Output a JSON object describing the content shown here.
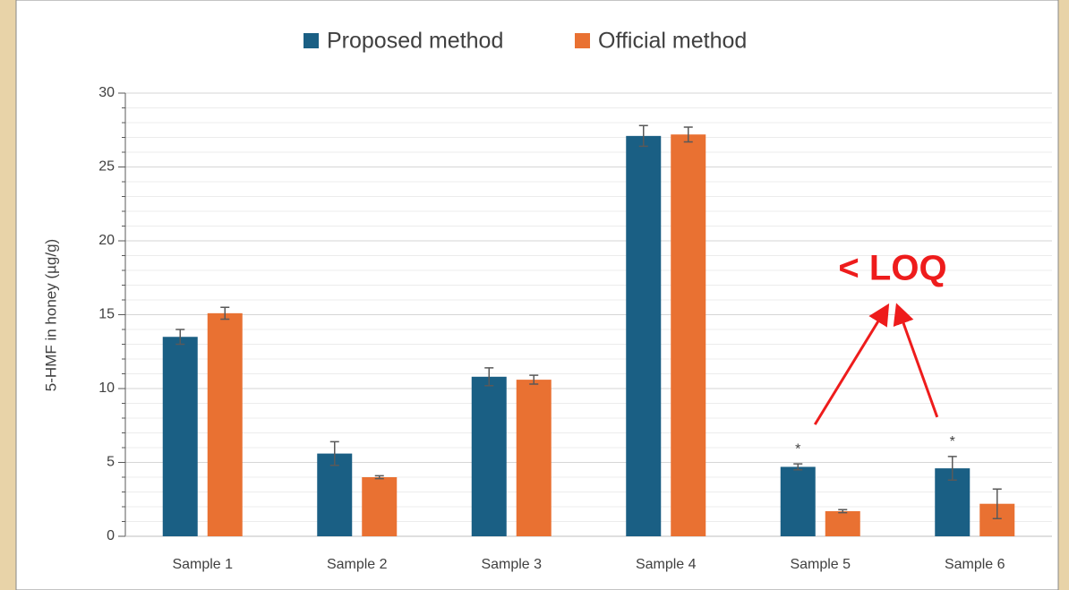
{
  "chart_data": {
    "type": "bar",
    "y_label": "5-HMF in honey (µg/g)",
    "categories": [
      "Sample 1",
      "Sample 2",
      "Sample 3",
      "Sample 4",
      "Sample 5",
      "Sample 6"
    ],
    "series": [
      {
        "name": "Proposed method",
        "color": "#1a5f84",
        "values": [
          13.5,
          5.6,
          10.8,
          27.1,
          4.7,
          4.6
        ],
        "errors": [
          0.5,
          0.8,
          0.6,
          0.7,
          0.2,
          0.8
        ]
      },
      {
        "name": "Official method",
        "color": "#e97132",
        "values": [
          15.1,
          4.0,
          10.6,
          27.2,
          1.7,
          2.2
        ],
        "errors": [
          0.4,
          0.1,
          0.3,
          0.5,
          0.1,
          1.0
        ]
      }
    ],
    "ylim": [
      0,
      30
    ],
    "yticks": [
      0,
      5,
      10,
      15,
      20,
      25,
      30
    ],
    "grid": true,
    "minor_grid_step": 1,
    "legend": "top",
    "annotation": "< LOQ",
    "annotation_color": "#ee1c1c",
    "asterisk": "*",
    "asterisk_categories": [
      "Sample 5",
      "Sample 6"
    ]
  }
}
